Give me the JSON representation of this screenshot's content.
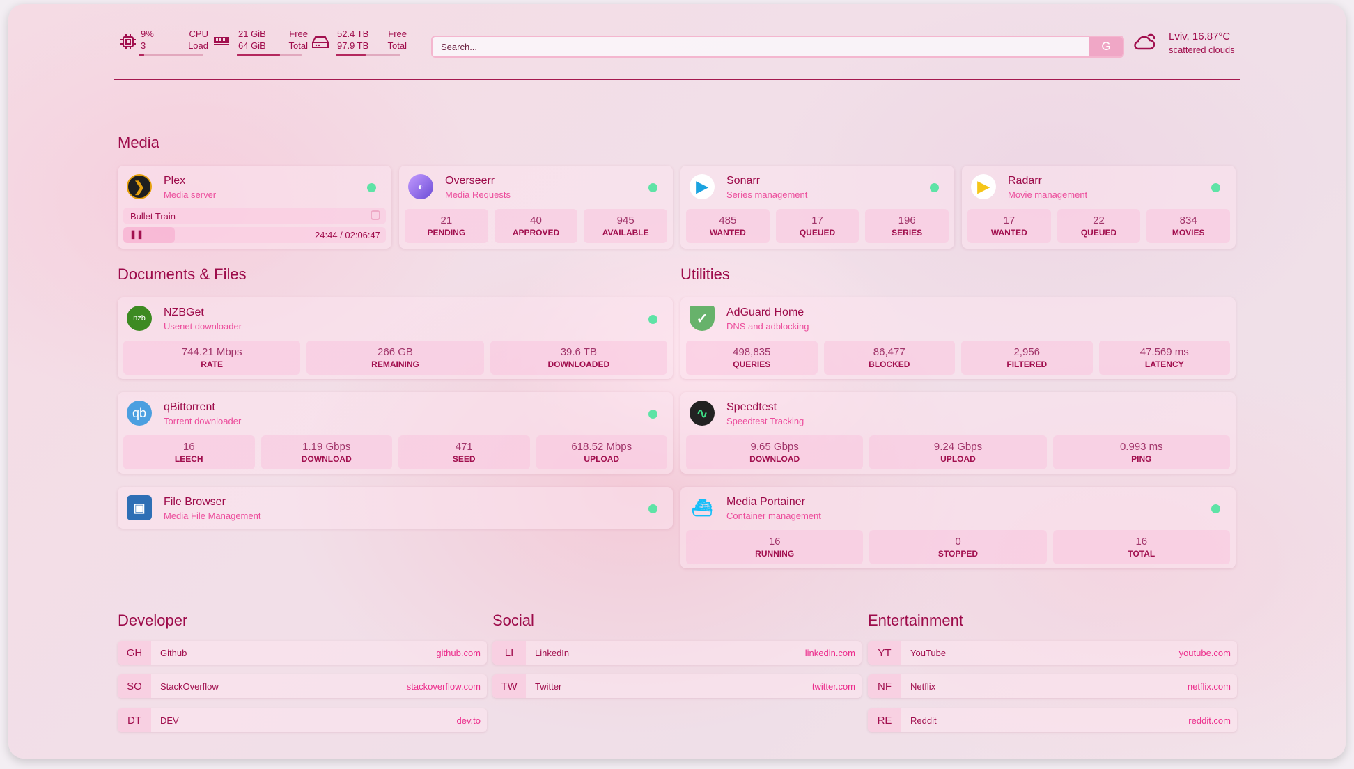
{
  "header": {
    "cpu": {
      "value": "9%",
      "cores": "3",
      "label1": "CPU",
      "label2": "Load",
      "load_percent": 9
    },
    "memory": {
      "free": "21 GiB",
      "total": "64 GiB",
      "label1": "Free",
      "label2": "Total",
      "used_percent": 67
    },
    "disk": {
      "free": "52.4 TB",
      "total": "97.9 TB",
      "label1": "Free",
      "label2": "Total",
      "used_percent": 46
    },
    "search": {
      "placeholder": "Search...",
      "engine_button": "G"
    },
    "weather": {
      "location_temp": "Lviv, 16.87°C",
      "description": "scattered clouds",
      "icon": "cloud-icon"
    }
  },
  "colors": {
    "accent": "#a10f4e",
    "subtitle": "#ec4d9c",
    "status_ok": "#5ee3a6"
  },
  "sections": {
    "media": "Media",
    "documents": "Documents & Files",
    "utilities": "Utilities",
    "developer": "Developer",
    "social": "Social",
    "entertainment": "Entertainment"
  },
  "plex": {
    "title": "Plex",
    "subtitle": "Media server",
    "now_playing": "Bullet Train",
    "time": "24:44 / 02:06:47",
    "progress_percent": 19.5,
    "status": "online"
  },
  "services": [
    {
      "id": "overseerr",
      "title": "Overseerr",
      "subtitle": "Media Requests",
      "status": "online",
      "stats": [
        {
          "value": "21",
          "label": "PENDING"
        },
        {
          "value": "40",
          "label": "APPROVED"
        },
        {
          "value": "945",
          "label": "AVAILABLE"
        }
      ]
    },
    {
      "id": "sonarr",
      "title": "Sonarr",
      "subtitle": "Series management",
      "status": "online",
      "stats": [
        {
          "value": "485",
          "label": "WANTED"
        },
        {
          "value": "17",
          "label": "QUEUED"
        },
        {
          "value": "196",
          "label": "SERIES"
        }
      ]
    },
    {
      "id": "radarr",
      "title": "Radarr",
      "subtitle": "Movie management",
      "status": "online",
      "stats": [
        {
          "value": "17",
          "label": "WANTED"
        },
        {
          "value": "22",
          "label": "QUEUED"
        },
        {
          "value": "834",
          "label": "MOVIES"
        }
      ]
    },
    {
      "id": "nzbget",
      "title": "NZBGet",
      "subtitle": "Usenet downloader",
      "status": "online",
      "stats": [
        {
          "value": "744.21 Mbps",
          "label": "RATE"
        },
        {
          "value": "266 GB",
          "label": "REMAINING"
        },
        {
          "value": "39.6 TB",
          "label": "DOWNLOADED"
        }
      ]
    },
    {
      "id": "qbittorrent",
      "title": "qBittorrent",
      "subtitle": "Torrent downloader",
      "status": "online",
      "stats": [
        {
          "value": "16",
          "label": "LEECH"
        },
        {
          "value": "1.19 Gbps",
          "label": "DOWNLOAD"
        },
        {
          "value": "471",
          "label": "SEED"
        },
        {
          "value": "618.52 Mbps",
          "label": "UPLOAD"
        }
      ]
    },
    {
      "id": "filebrowser",
      "title": "File Browser",
      "subtitle": "Media File Management",
      "status": "online",
      "stats": []
    },
    {
      "id": "adguard",
      "title": "AdGuard Home",
      "subtitle": "DNS and adblocking",
      "stats": [
        {
          "value": "498,835",
          "label": "QUERIES"
        },
        {
          "value": "86,477",
          "label": "BLOCKED"
        },
        {
          "value": "2,956",
          "label": "FILTERED"
        },
        {
          "value": "47.569 ms",
          "label": "LATENCY"
        }
      ]
    },
    {
      "id": "speedtest",
      "title": "Speedtest",
      "subtitle": "Speedtest Tracking",
      "stats": [
        {
          "value": "9.65 Gbps",
          "label": "DOWNLOAD"
        },
        {
          "value": "9.24 Gbps",
          "label": "UPLOAD"
        },
        {
          "value": "0.993 ms",
          "label": "PING"
        }
      ]
    },
    {
      "id": "portainer",
      "title": "Media Portainer",
      "subtitle": "Container management",
      "status": "online",
      "stats": [
        {
          "value": "16",
          "label": "RUNNING"
        },
        {
          "value": "0",
          "label": "STOPPED"
        },
        {
          "value": "16",
          "label": "TOTAL"
        }
      ]
    }
  ],
  "bookmarks": {
    "developer": [
      {
        "abbr": "GH",
        "name": "Github",
        "url": "github.com"
      },
      {
        "abbr": "SO",
        "name": "StackOverflow",
        "url": "stackoverflow.com"
      },
      {
        "abbr": "DT",
        "name": "DEV",
        "url": "dev.to"
      }
    ],
    "social": [
      {
        "abbr": "LI",
        "name": "LinkedIn",
        "url": "linkedin.com"
      },
      {
        "abbr": "TW",
        "name": "Twitter",
        "url": "twitter.com"
      }
    ],
    "entertainment": [
      {
        "abbr": "YT",
        "name": "YouTube",
        "url": "youtube.com"
      },
      {
        "abbr": "NF",
        "name": "Netflix",
        "url": "netflix.com"
      },
      {
        "abbr": "RE",
        "name": "Reddit",
        "url": "reddit.com"
      }
    ]
  }
}
